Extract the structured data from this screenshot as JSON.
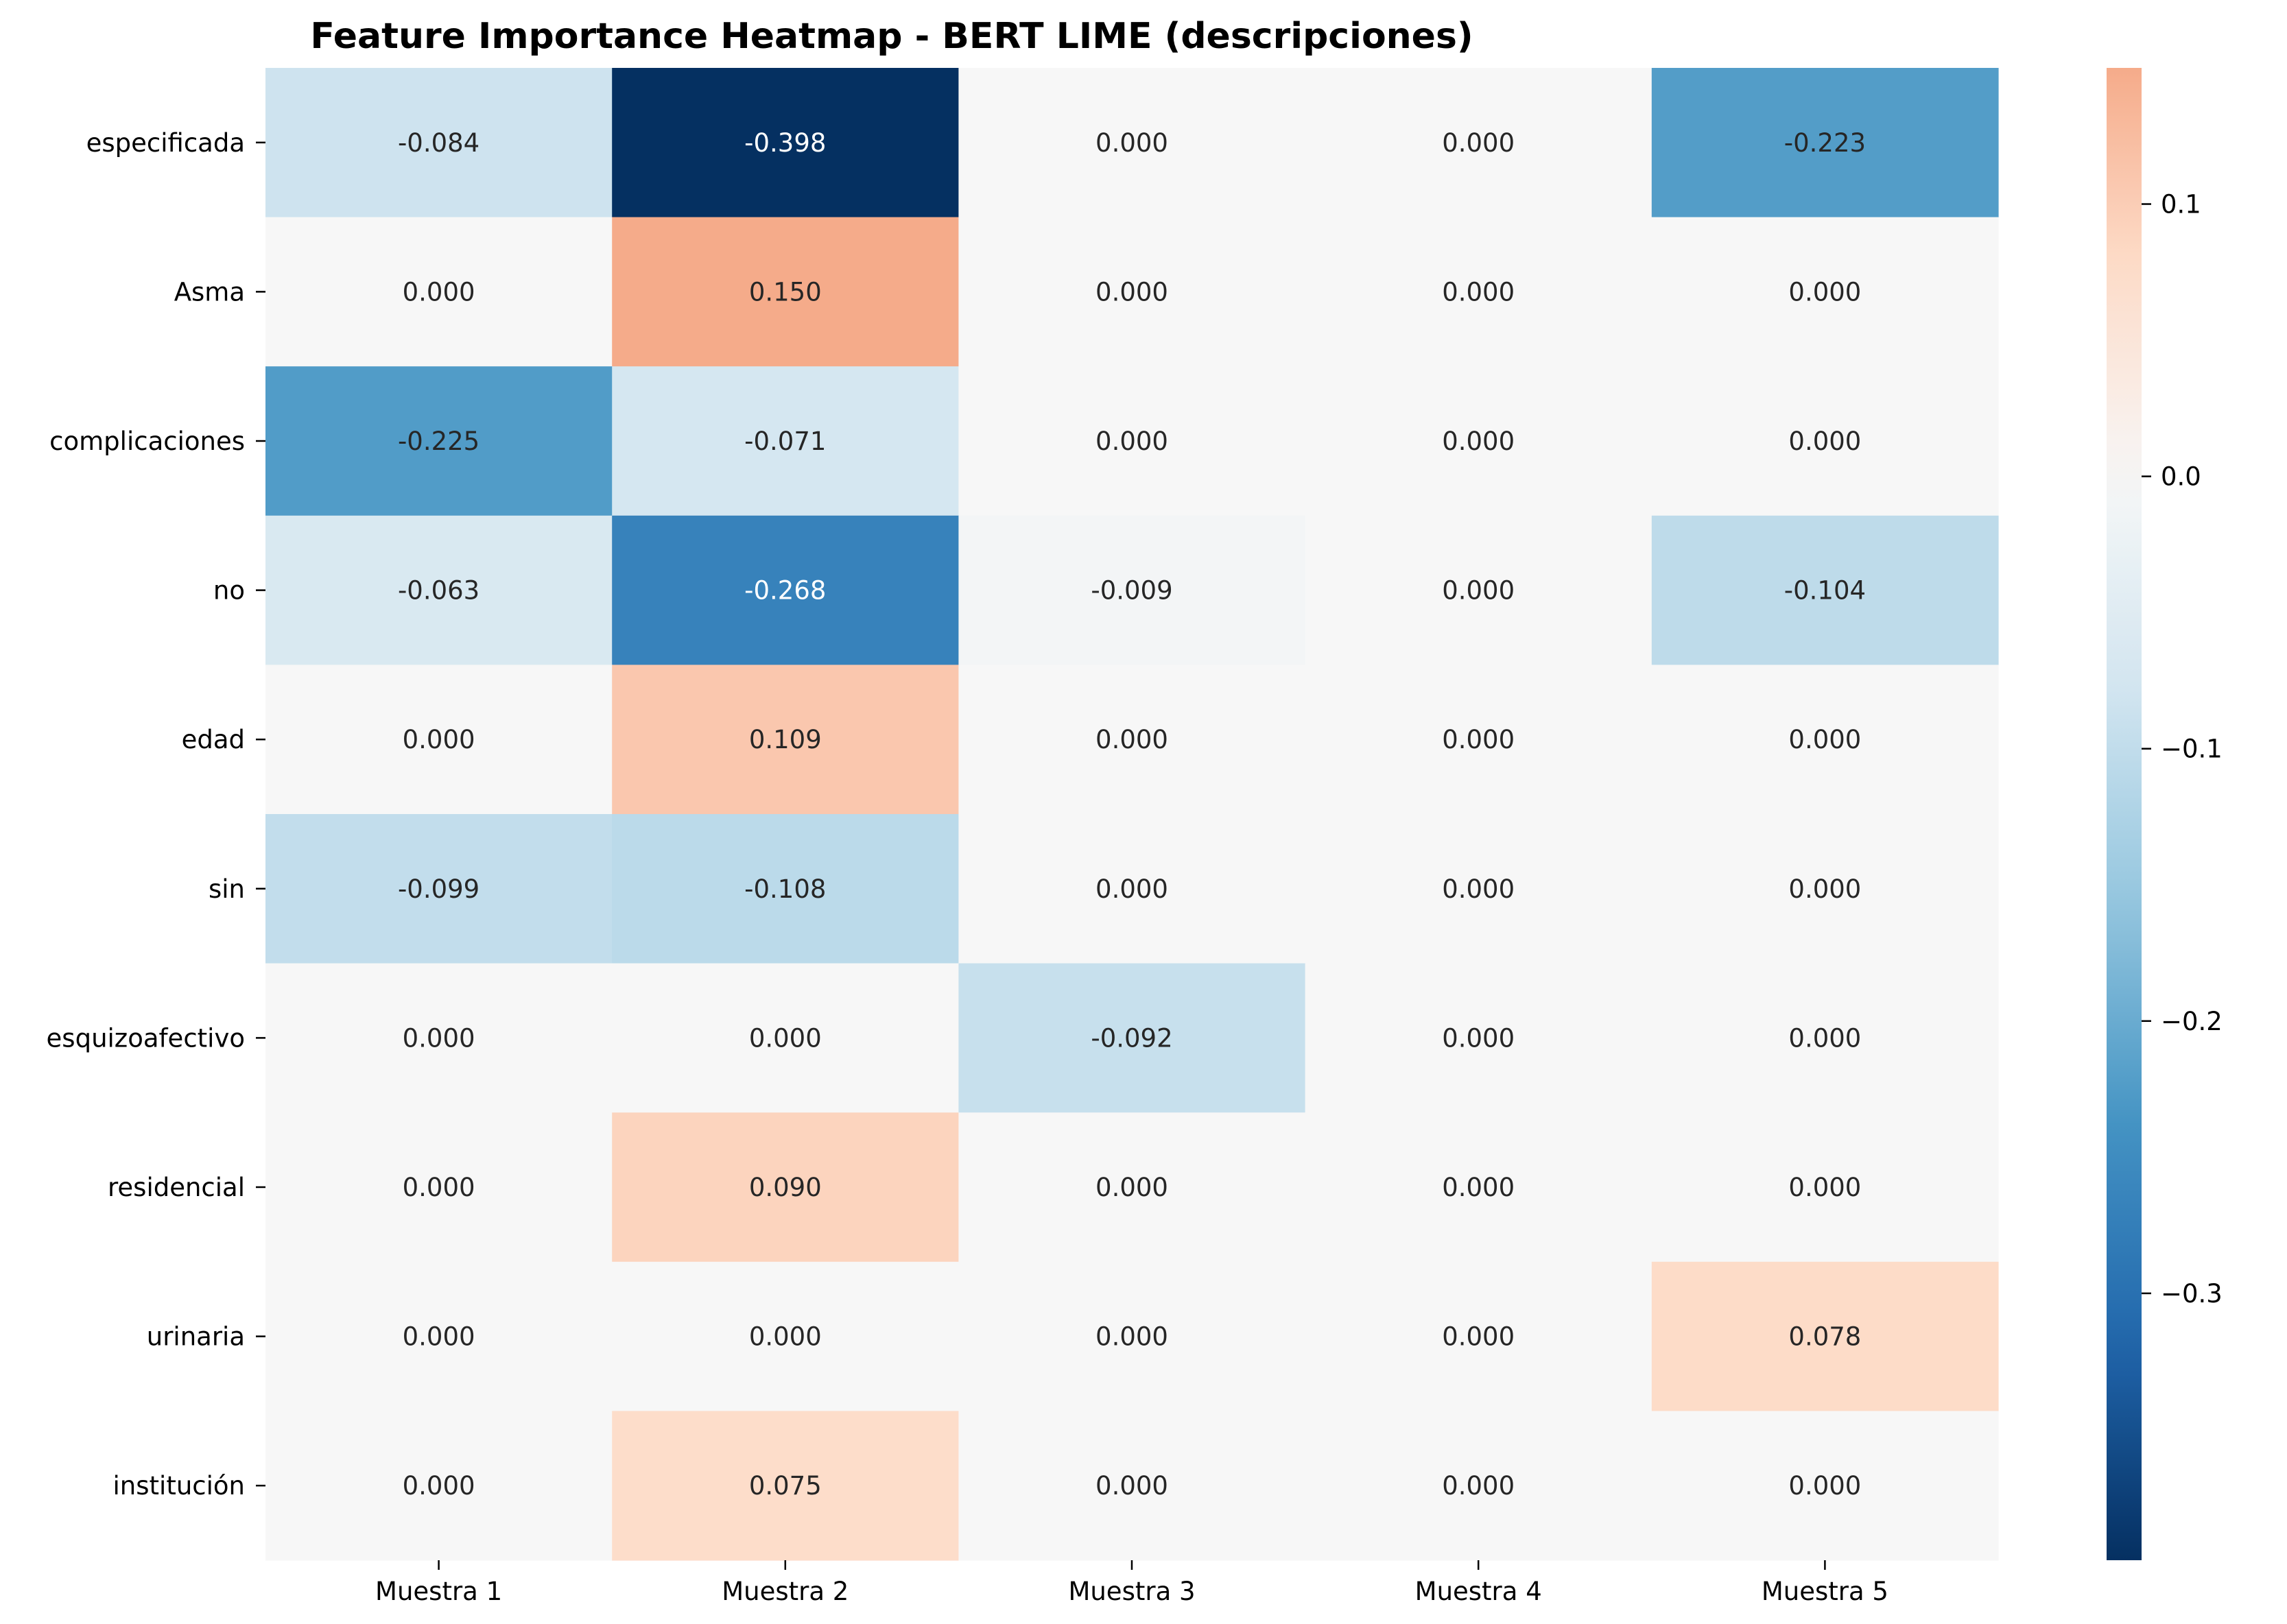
{
  "chart_data": {
    "type": "heatmap",
    "title": "Feature Importance Heatmap - BERT LIME (descripciones)",
    "xlabel": "",
    "ylabel": "",
    "columns": [
      "Muestra 1",
      "Muestra 2",
      "Muestra 3",
      "Muestra 4",
      "Muestra 5"
    ],
    "rows": [
      "especificada",
      "Asma",
      "complicaciones",
      "no",
      "edad",
      "sin",
      "esquizoafectivo",
      "residencial",
      "urinaria",
      "institución"
    ],
    "values": [
      [
        -0.084,
        -0.398,
        0.0,
        0.0,
        -0.223
      ],
      [
        0.0,
        0.15,
        0.0,
        0.0,
        0.0
      ],
      [
        -0.225,
        -0.071,
        0.0,
        0.0,
        0.0
      ],
      [
        -0.063,
        -0.268,
        -0.009,
        0.0,
        -0.104
      ],
      [
        0.0,
        0.109,
        0.0,
        0.0,
        0.0
      ],
      [
        -0.099,
        -0.108,
        0.0,
        0.0,
        0.0
      ],
      [
        0.0,
        0.0,
        -0.092,
        0.0,
        0.0
      ],
      [
        0.0,
        0.09,
        0.0,
        0.0,
        0.0
      ],
      [
        0.0,
        0.0,
        0.0,
        0.0,
        0.078
      ],
      [
        0.0,
        0.075,
        0.0,
        0.0,
        0.0
      ]
    ],
    "value_format": "0.000",
    "colormap": "RdBu_r",
    "color_center": 0.0,
    "color_range": [
      -0.398,
      0.398
    ],
    "colorbar_range": [
      -0.398,
      0.15
    ],
    "colorbar_ticks": [
      0.1,
      0.0,
      -0.1,
      -0.2,
      -0.3
    ],
    "colorbar_tick_labels": [
      "0.1",
      "0.0",
      "−0.1",
      "−0.2",
      "−0.3"
    ],
    "grid": false,
    "legend": "colorbar-right"
  }
}
